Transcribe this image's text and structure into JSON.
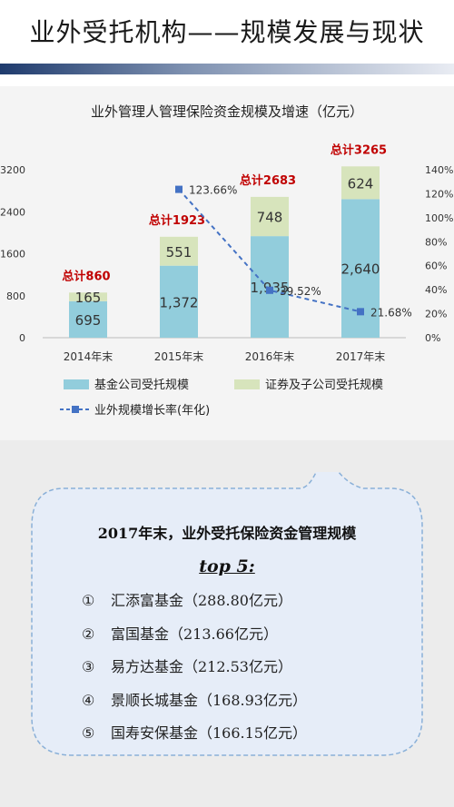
{
  "header": {
    "title": "业外受托机构——规模发展与现状"
  },
  "chart_data": {
    "type": "bar",
    "title": "业外管理人管理保险资金规模及增速（亿元）",
    "categories": [
      "2014年末",
      "2015年末",
      "2016年末",
      "2017年末"
    ],
    "series": [
      {
        "name": "基金公司受托规模",
        "values": [
          695,
          1372,
          1935,
          2640
        ],
        "labels": [
          "695",
          "1,372",
          "1,935",
          "2,640"
        ],
        "color": "#92cddc"
      },
      {
        "name": "证券及子公司受托规模",
        "values": [
          165,
          551,
          748,
          624
        ],
        "labels": [
          "165",
          "551",
          "748",
          "624"
        ],
        "color": "#d7e4bc"
      }
    ],
    "line_series": {
      "name": "业外规模增长率(年化)",
      "values": [
        123.66,
        39.52,
        21.68
      ],
      "categories": [
        "2015年末",
        "2016年末",
        "2017年末"
      ],
      "labels": [
        "123.66%",
        "39.52%",
        "21.68%"
      ],
      "color": "#4472c4",
      "style": "dashed"
    },
    "totals": [
      "总计860",
      "总计1923",
      "总计2683",
      "总计3265"
    ],
    "y_left": {
      "ticks": [
        "0",
        "800",
        "1600",
        "2400",
        "3200"
      ],
      "range": [
        0,
        3200
      ]
    },
    "y_right": {
      "ticks": [
        "0%",
        "20%",
        "40%",
        "60%",
        "80%",
        "100%",
        "120%",
        "140%"
      ],
      "range": [
        0,
        140
      ]
    },
    "legend_position": "bottom",
    "grid": false
  },
  "callout": {
    "heading": "2017年末，业外受托保险资金管理规模",
    "subheading": "top 5:",
    "items": [
      {
        "num": "①",
        "text": "汇添富基金（288.80亿元）"
      },
      {
        "num": "②",
        "text": "富国基金（213.66亿元）"
      },
      {
        "num": "③",
        "text": "易方达基金（212.53亿元）"
      },
      {
        "num": "④",
        "text": "景顺长城基金（168.93亿元）"
      },
      {
        "num": "⑤",
        "text": "国寿安保基金（166.15亿元）"
      }
    ]
  }
}
